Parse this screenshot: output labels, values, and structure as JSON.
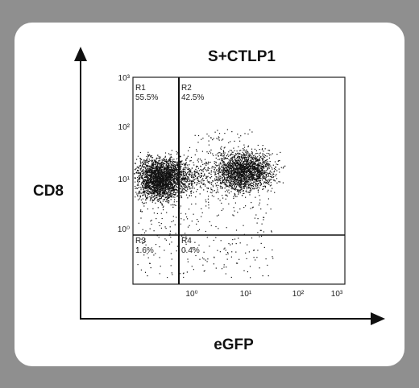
{
  "title": "S+CTLP1",
  "y_label": "CD8",
  "x_label": "eGFP",
  "quadrants": [
    {
      "name": "R1",
      "percent": "55.5%"
    },
    {
      "name": "R2",
      "percent": "42.5%"
    },
    {
      "name": "R3",
      "percent": "1.6%"
    },
    {
      "name": "R4",
      "percent": "0.4%"
    }
  ],
  "x_tick_labels": [
    "10⁰",
    "10¹",
    "10²",
    "10³"
  ],
  "y_tick_labels": [
    "10³",
    "10²",
    "10¹",
    "10⁰"
  ]
}
